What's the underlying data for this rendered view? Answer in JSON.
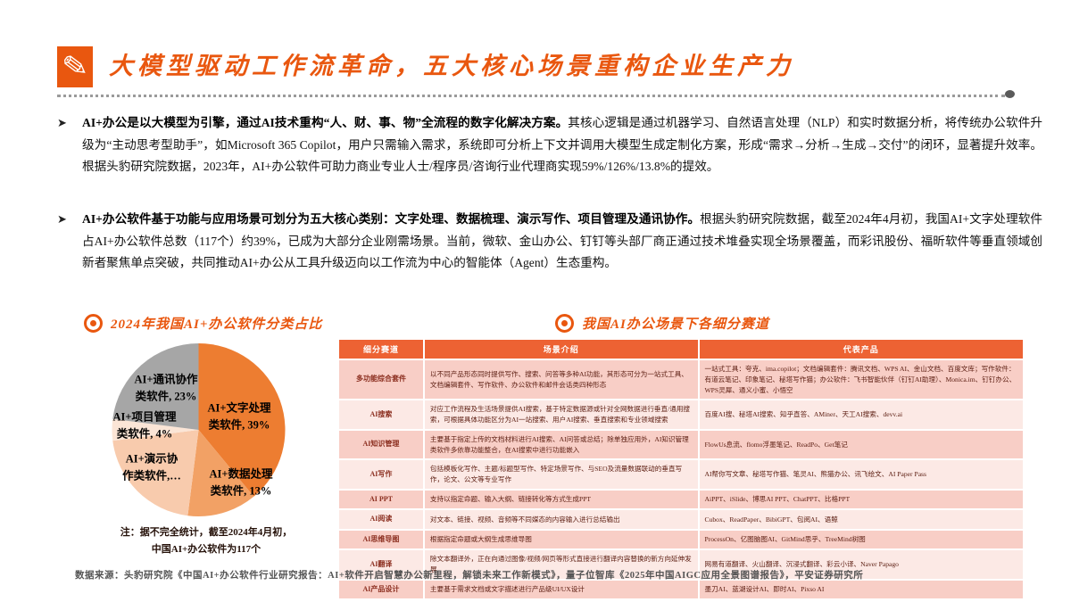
{
  "header": {
    "title": "大模型驱动工作流革命，五大核心场景重构企业生产力"
  },
  "bullets": [
    {
      "lead": "AI+办公是以大模型为引擎，通过AI技术重构“人、财、事、物”全流程的数字化解决方案。",
      "rest": "其核心逻辑是通过机器学习、自然语言处理（NLP）和实时数据分析，将传统办公软件升级为“主动思考型助手”，如Microsoft 365 Copilot，用户只需输入需求，系统即可分析上下文并调用大模型生成定制化方案，形成“需求→分析→生成→交付”的闭环，显著提升效率。根据头豹研究院数据，2023年，AI+办公软件可助力商业专业人士/程序员/咨询行业代理商实现59%/126%/13.8%的提效。"
    },
    {
      "lead": "AI+办公软件基于功能与应用场景可划分为五大核心类别：文字处理、数据梳理、演示写作、项目管理及通讯协作。",
      "rest": "根据头豹研究院数据，截至2024年4月初，我国AI+文字处理软件占AI+办公软件总数（117个）约39%，已成为大部分企业刚需场景。当前，微软、金山办公、钉钉等头部厂商正通过技术堆叠实现全场景覆盖，而彩讯股份、福昕软件等垂直领域创新者聚焦单点突破，共同推动AI+办公从工具升级迈向以工作流为中心的智能体（Agent）生态重构。"
    }
  ],
  "chart_data": {
    "type": "pie",
    "title": "2024年我国AI+办公软件分类占比",
    "legend_position": "on-slice-labels",
    "slices": [
      {
        "label": "AI+文字处理类软件",
        "value": 39,
        "color": "#ED7D31",
        "display": "AI+文字处理\n类软件, 39%"
      },
      {
        "label": "AI+数据处理类软件",
        "value": 13,
        "color": "#F2A165",
        "display": "AI+数据处理\n类软件, 13%"
      },
      {
        "label": "AI+演示协作类软件",
        "value": 21,
        "color": "#F8CBAD",
        "display": "AI+演示协\n作类软件,…"
      },
      {
        "label": "AI+项目管理类软件",
        "value": 4,
        "color": "#FBE5D6",
        "display": "AI+项目管理\n类软件, 4%"
      },
      {
        "label": "AI+通讯协作类软件",
        "value": 23,
        "color": "#A6A6A6",
        "display": "AI+通讯协作\n类软件, 23%"
      }
    ],
    "note": "注：据不完全统计，截至2024年4月初，\n中国AI+办公软件为117个"
  },
  "table_section": {
    "title": "我国AI办公场景下各细分赛道"
  },
  "table": {
    "headers": [
      "细分赛道",
      "场景介绍",
      "代表产品"
    ],
    "rows": [
      {
        "track": "多功能综合套件",
        "scene": "以不同产品形态同时提供写作、搜索、问答等多种AI功能，其形态可分为一站式工具、文档编辑套件、写作软件、办公软件和邮件会话类四种形态",
        "products": "一站式工具：夸克、ima.copilot；文档编辑套件：腾讯文档、WPS AI、金山文档、百度文库；写作软件：有道云笔记、印象笔记、秘塔写作猫；办公软件：飞书智能伙伴（钉钉AI助理）、Monica.im、钉钉办公、WPS灵犀、通义小蜜、小悟空"
      },
      {
        "track": "AI搜索",
        "scene": "对应工作流程及生活场景提供AI搜索，基于特定数据源或针对全网数据进行垂直/通用搜索，可根据具体功能区分为AI一站搜索、用户AI搜索、垂直搜索和专业领域搜索",
        "products": "百度AI搜、秘塔AI搜索、知乎直答、AMiner、天工AI搜索、devv.ai"
      },
      {
        "track": "AI知识管理",
        "scene": "主要基于指定上传的文档材料进行AI搜索、AI问答或总结；除单独应用外，AI知识管理类软件多依靠功能整合，在AI搜索中进行功能嵌入",
        "products": "FlowUs息流、flomo浮墨笔记、ReadPo、Get笔记"
      },
      {
        "track": "AI写作",
        "scene": "包括模板化写作、主题/标题型写作、特定场景写作、与SEO及流量数据联动的垂直写作，论文、公文等专业写作",
        "products": "AI帮你写文章、秘塔写作猫、笔灵AI、熊猫办公、讯飞绘文、AI Paper Pass"
      },
      {
        "track": "AI PPT",
        "scene": "支持以指定命题、输入大纲、链接转化等方式生成PPT",
        "products": "AiPPT、iSlide、博思AI PPT、ChatPPT、比格PPT"
      },
      {
        "track": "AI阅读",
        "scene": "对文本、链接、视频、音频等不同媒态的内容输入进行总结输出",
        "products": "Cubox、ReadPaper、BibiGPT、包阅AI、语鲸"
      },
      {
        "track": "AI思维导图",
        "scene": "根据指定命题或大纲生成思维导图",
        "products": "ProcessOn、亿图脑图AI、GitMind思乎、TreeMind树图"
      },
      {
        "track": "AI翻译",
        "scene": "除文本翻译外，正在向通过图像/视频/网页等形式直接进行翻译内容替换的新方向延伸发展",
        "products": "网易有道翻译、火山翻译、沉浸式翻译、彩云小译、Naver Papago"
      },
      {
        "track": "AI产品设计",
        "scene": "主要基于需求文档或文字描述进行产品级UI/UX设计",
        "products": "墨刀AI、蓝湖设计AI、即时AI、Pixso AI"
      }
    ]
  },
  "footer": {
    "source": "数据来源：头豹研究院《中国AI+办公软件行业研究报告：AI+软件开启智慧办公新里程，解锁未来工作新模式》，量子位智库《2025年中国AIGC应用全景图谱报告》，平安证券研究所"
  }
}
